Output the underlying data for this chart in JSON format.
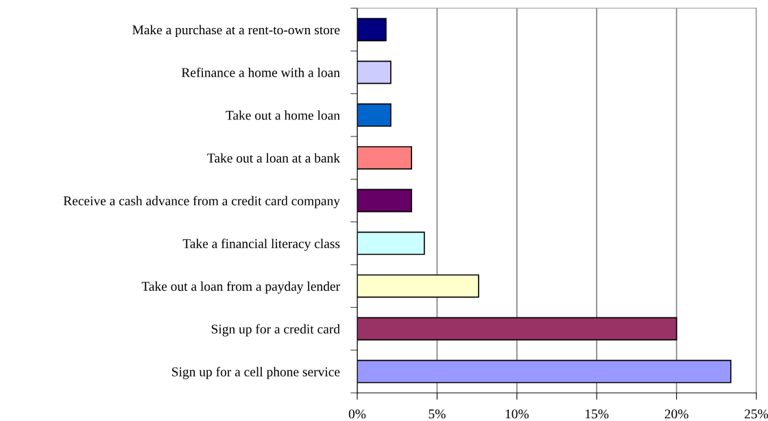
{
  "chart_data": {
    "type": "bar",
    "orientation": "horizontal",
    "categories": [
      "Make a purchase at a rent-to-own store",
      "Refinance a home with a loan",
      "Take out a home loan",
      "Take out a loan at a bank",
      "Receive a cash advance from a credit card company",
      "Take a financial literacy class",
      "Take out a loan from a payday lender",
      "Sign up for a credit card",
      "Sign up for a cell phone service"
    ],
    "values": [
      1.8,
      2.1,
      2.1,
      3.4,
      3.4,
      4.2,
      7.6,
      20.0,
      23.4
    ],
    "colors": [
      "#000080",
      "#ccccff",
      "#0066cc",
      "#ff8080",
      "#660066",
      "#ccffff",
      "#ffffcc",
      "#993366",
      "#9999ff"
    ],
    "xlim": [
      0,
      25
    ],
    "xticks": [
      {
        "value": 0,
        "label": "0%"
      },
      {
        "value": 5,
        "label": "5%"
      },
      {
        "value": 10,
        "label": "10%"
      },
      {
        "value": 15,
        "label": "15%"
      },
      {
        "value": 20,
        "label": "20%"
      },
      {
        "value": 25,
        "label": "25%"
      }
    ],
    "grid": "x",
    "legend": false
  }
}
